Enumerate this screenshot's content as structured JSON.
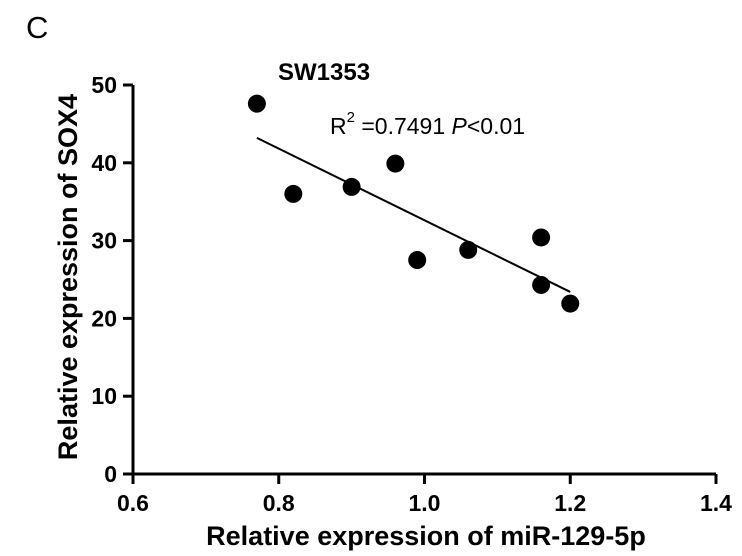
{
  "panel_label": "C",
  "chart_data": {
    "type": "scatter",
    "title": "SW1353",
    "xlabel": "Relative expression of miR-129-5p",
    "ylabel": "Relative expression of SOX4",
    "xlim": [
      0.6,
      1.4
    ],
    "ylim": [
      0,
      50
    ],
    "x_ticks": [
      "0.6",
      "0.8",
      "1.0",
      "1.2",
      "1.4"
    ],
    "y_ticks": [
      "0",
      "10",
      "20",
      "30",
      "40",
      "50"
    ],
    "points": [
      {
        "x": 0.77,
        "y": 47.6
      },
      {
        "x": 0.82,
        "y": 36.0
      },
      {
        "x": 0.9,
        "y": 36.9
      },
      {
        "x": 0.96,
        "y": 39.9
      },
      {
        "x": 0.99,
        "y": 27.5
      },
      {
        "x": 1.06,
        "y": 28.8
      },
      {
        "x": 1.16,
        "y": 30.4
      },
      {
        "x": 1.16,
        "y": 24.3
      },
      {
        "x": 1.2,
        "y": 21.9
      }
    ],
    "fit_line": {
      "x1": 0.77,
      "y1": 43.2,
      "x2": 1.2,
      "y2": 23.4
    },
    "annotation": {
      "r_label": "R",
      "r_superscript": "2",
      "r_value": " =0.7491 ",
      "p_label": "P",
      "p_value": "<0.01"
    },
    "grid": false,
    "marker_color": "#000000"
  }
}
